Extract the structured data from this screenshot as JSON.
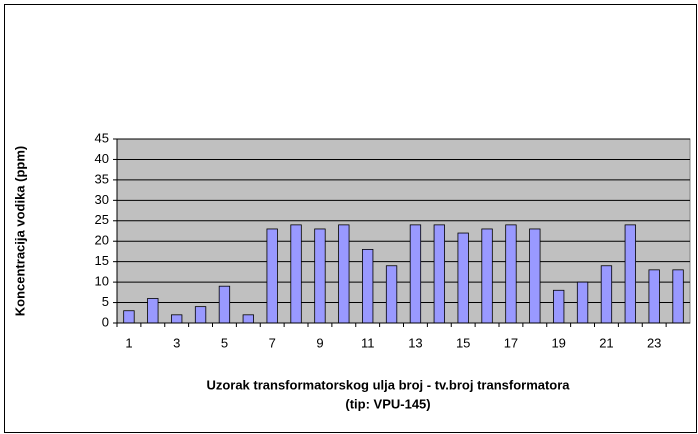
{
  "chart_data": {
    "type": "bar",
    "y_label": "Koncentracija vodika (ppm)",
    "x_label": [
      "Uzorak transformatorskog ulja broj - tv.broj transformatora",
      "(tip: VPU-145)"
    ],
    "categories": [
      1,
      null,
      3,
      null,
      5,
      null,
      7,
      null,
      9,
      null,
      11,
      null,
      13,
      null,
      15,
      null,
      17,
      null,
      19,
      null,
      21,
      null,
      23,
      null
    ],
    "values": [
      3,
      6,
      2,
      4,
      9,
      2,
      23,
      24,
      23,
      24,
      18,
      14,
      24,
      24,
      22,
      23,
      24,
      23,
      8,
      10,
      14,
      24,
      13,
      13
    ],
    "color": "#9999ff",
    "ylim": [
      0,
      45
    ],
    "yticks": [
      0,
      5,
      10,
      15,
      20,
      25,
      30,
      35,
      40,
      45
    ],
    "grid": true
  }
}
